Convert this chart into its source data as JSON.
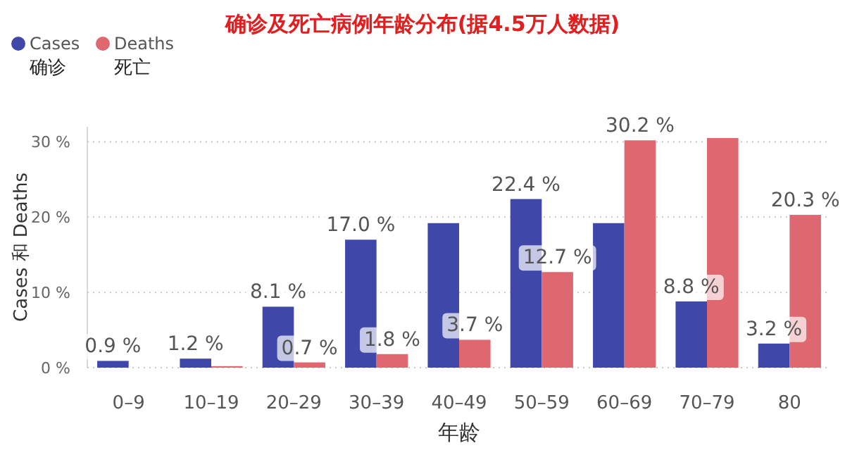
{
  "chart_data": {
    "type": "bar",
    "title": "确诊及死亡病例年龄分布(据4.5万人数据)",
    "xlabel": "年龄",
    "ylabel": "Cases 和 Deaths",
    "categories": [
      "0–9",
      "10–19",
      "20–29",
      "30–39",
      "40–49",
      "50–59",
      "60–69",
      "70–79",
      "80"
    ],
    "series": [
      {
        "name": "Cases 确诊",
        "color": "#3f48a8",
        "values": [
          0.9,
          1.2,
          8.1,
          17.0,
          19.2,
          22.4,
          19.2,
          8.8,
          3.2
        ],
        "value_labels": [
          "0.9 %",
          "1.2 %",
          "8.1 %",
          "17.0 %",
          null,
          "22.4 %",
          null,
          "8.8 %",
          "3.2 %"
        ]
      },
      {
        "name": "Deaths 死亡",
        "color": "#df6770",
        "values": [
          null,
          0.2,
          0.7,
          1.8,
          3.7,
          12.7,
          30.2,
          30.5,
          20.3
        ],
        "value_labels": [
          null,
          null,
          "0.7 %",
          "1.8 %",
          "3.7 %",
          "12.7 %",
          "30.2 %",
          null,
          "20.3 %"
        ]
      }
    ],
    "ylim": [
      0,
      32
    ],
    "yticks": [
      {
        "value": 0,
        "label": "0 %"
      },
      {
        "value": 10,
        "label": "10 %"
      },
      {
        "value": 20,
        "label": "20 %"
      },
      {
        "value": 30,
        "label": "30 %"
      }
    ],
    "grid": "y",
    "legend": "top left"
  }
}
